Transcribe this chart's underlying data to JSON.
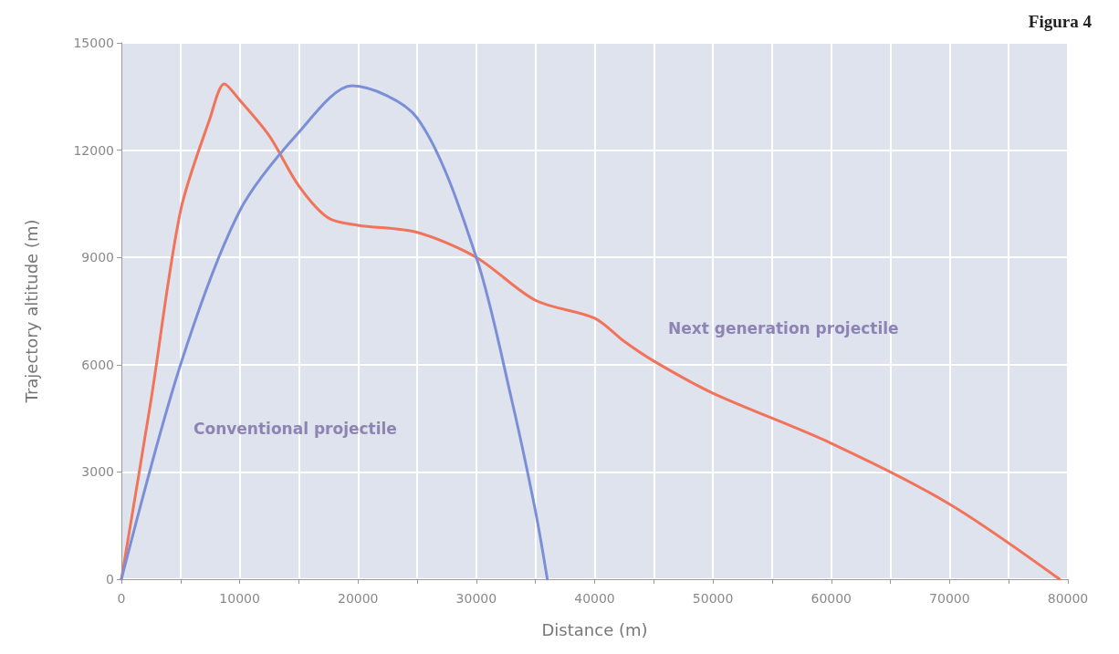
{
  "chart_data": {
    "type": "line",
    "xlabel": "Distance (m)",
    "ylabel": "Trajectory altitude (m)",
    "xlim": [
      0,
      80000
    ],
    "xticks": [
      0,
      {
        "value": 5000,
        "label": null
      },
      10000,
      {
        "value": 15000,
        "label": null
      },
      20000,
      {
        "value": 25000,
        "label": null
      },
      30000,
      {
        "value": 35000,
        "label": null
      },
      40000,
      {
        "value": 45000,
        "label": null
      },
      50000,
      {
        "value": 55000,
        "label": null
      },
      60000,
      {
        "value": 65000,
        "label": null
      },
      70000,
      {
        "value": 75000,
        "label": null
      },
      80000
    ],
    "ylim": [
      0,
      15000
    ],
    "yticks": [
      0,
      3000,
      6000,
      9000,
      12000,
      15000
    ],
    "grid": true,
    "marker": "none",
    "line_style": "solid",
    "series": [
      {
        "color": "#f0735a",
        "x": [
          0,
          2500,
          5000,
          7500,
          8700,
          10000,
          12500,
          15000,
          17500,
          20000,
          25000,
          30000,
          35000,
          40000,
          42500,
          45000,
          50000,
          60000,
          70000,
          79300
        ],
        "values": [
          0,
          5000,
          10300,
          12900,
          13850,
          13400,
          12400,
          11000,
          10100,
          9900,
          9700,
          9000,
          7800,
          7300,
          6650,
          6100,
          5200,
          3800,
          2100,
          0
        ]
      },
      {
        "color": "#7b8fd6",
        "x": [
          0,
          5000,
          10000,
          15000,
          19500,
          25000,
          30000,
          33000,
          35000,
          36000
        ],
        "values": [
          0,
          6000,
          10300,
          12500,
          13800,
          12900,
          9000,
          5000,
          1900,
          0
        ]
      }
    ],
    "annotations": [
      "Conventional projectile",
      "Next generation projectile",
      "Figura 4"
    ]
  }
}
